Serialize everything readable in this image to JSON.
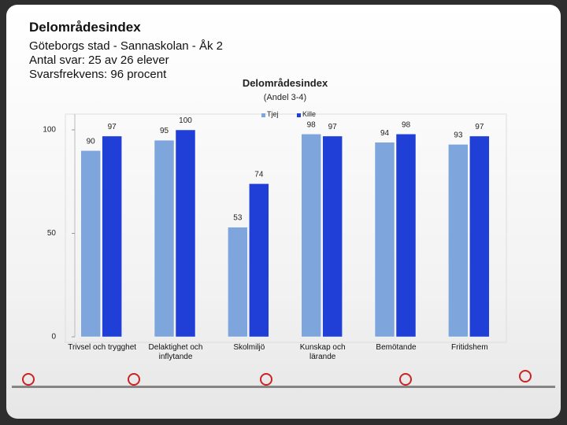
{
  "header": {
    "title": "Delområdesindex",
    "lines": [
      "Göteborgs stad - Sannaskolan - Åk 2",
      "Antal svar: 25 av 26 elever",
      "Svarsfrekvens: 96 procent"
    ]
  },
  "chart_data": {
    "type": "bar",
    "title": "Delområdesindex",
    "subtitle": "(Andel 3-4)",
    "categories": [
      "Trivsel och trygghet",
      "Delaktighet och inflytande",
      "Skolmiljö",
      "Kunskap och lärande",
      "Bemötande",
      "Fritidshem"
    ],
    "series": [
      {
        "name": "Tjej",
        "color": "#7ea6dc",
        "values": [
          90,
          95,
          53,
          98,
          94,
          93
        ]
      },
      {
        "name": "Kille",
        "color": "#1f3fd6",
        "values": [
          97,
          100,
          74,
          97,
          98,
          97
        ]
      }
    ],
    "ylim": [
      0,
      100
    ],
    "yticks": [
      0,
      50,
      100
    ],
    "legend": "top"
  }
}
